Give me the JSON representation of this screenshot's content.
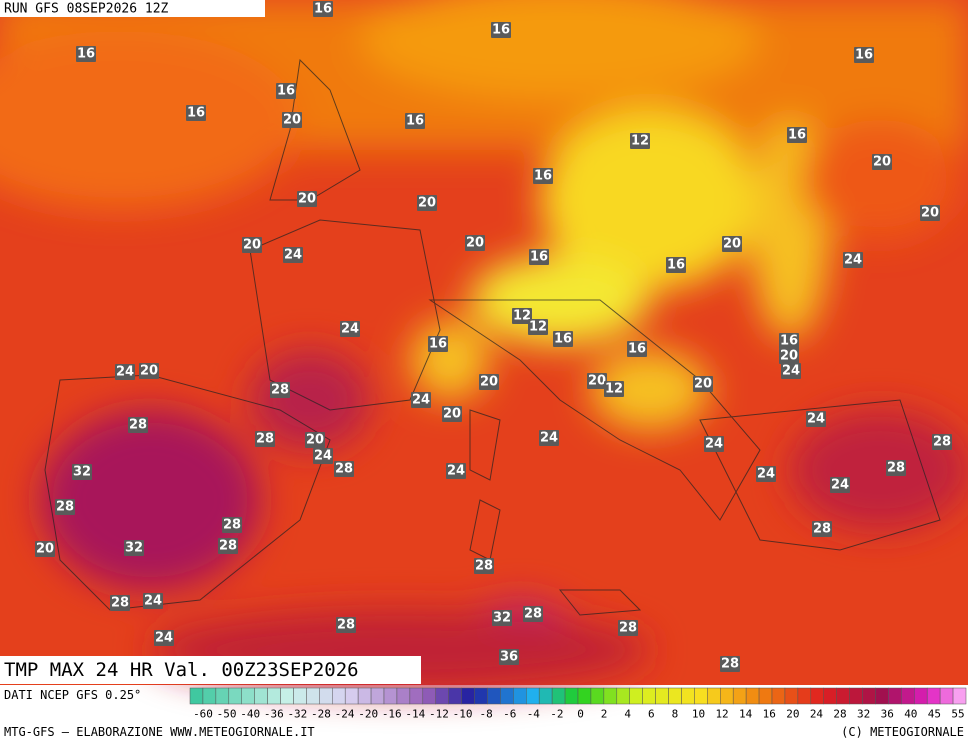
{
  "header": {
    "run": "RUN GFS 08SEP2026 12Z"
  },
  "title": "TMP MAX 24 HR Val. 00Z23SEP2026",
  "map": {
    "labels": [
      16,
      16,
      16,
      16,
      16,
      16,
      20,
      16,
      12,
      16,
      20,
      16,
      20,
      20,
      20,
      20,
      24,
      20,
      20,
      16,
      16,
      24,
      24,
      12,
      12,
      16,
      16,
      16,
      16,
      20,
      24,
      24,
      20,
      20,
      20,
      12,
      20,
      28,
      24,
      20,
      24,
      28,
      28,
      20,
      24,
      24,
      28,
      24,
      28,
      24,
      32,
      24,
      28,
      24,
      28,
      28,
      28,
      28,
      32,
      20,
      28,
      28,
      24,
      32,
      28,
      24,
      28,
      28,
      36,
      28
    ]
  },
  "legend": {
    "source": "DATI NCEP GFS 0.25°",
    "scale": [
      -60,
      -50,
      -40,
      -36,
      -32,
      -28,
      -24,
      -20,
      -16,
      -14,
      -12,
      -10,
      -8,
      -6,
      -4,
      -2,
      0,
      2,
      4,
      6,
      8,
      10,
      12,
      14,
      16,
      20,
      24,
      28,
      32,
      36,
      40,
      45,
      55
    ]
  },
  "footer": {
    "credits": "MTG-GFS — ELABORAZIONE WWW.METEOGIORNALE.IT",
    "copyright": "(C) METEOGIORNALE"
  }
}
